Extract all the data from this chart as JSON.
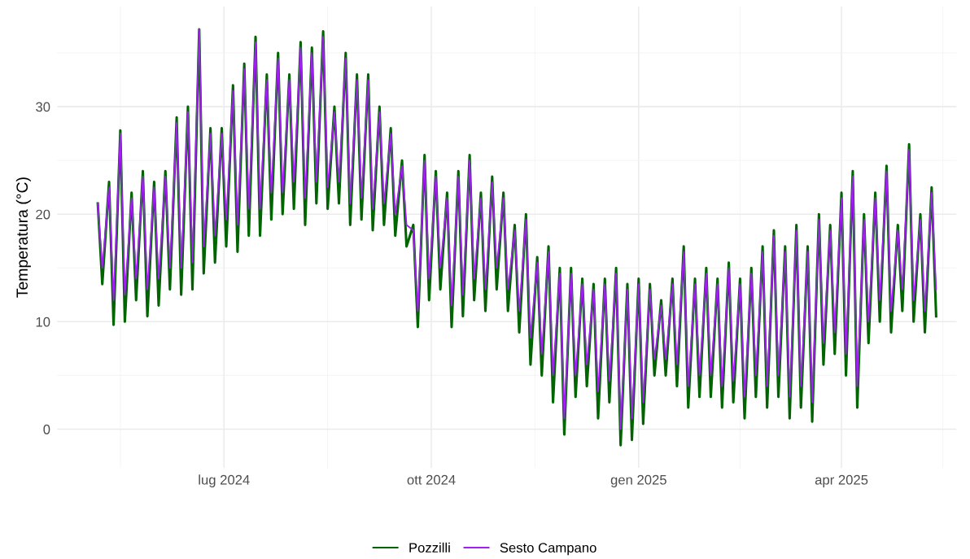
{
  "chart_data": {
    "type": "line",
    "ylabel": "Temperatura (°C)",
    "x": [
      "2024-05-06",
      "2024-05-08",
      "2024-05-11",
      "2024-05-13",
      "2024-05-16",
      "2024-05-18",
      "2024-05-21",
      "2024-05-23",
      "2024-05-26",
      "2024-05-28",
      "2024-05-31",
      "2024-06-02",
      "2024-06-05",
      "2024-06-07",
      "2024-06-10",
      "2024-06-12",
      "2024-06-15",
      "2024-06-17",
      "2024-06-20",
      "2024-06-22",
      "2024-06-25",
      "2024-06-27",
      "2024-06-30",
      "2024-07-02",
      "2024-07-05",
      "2024-07-07",
      "2024-07-10",
      "2024-07-12",
      "2024-07-15",
      "2024-07-17",
      "2024-07-20",
      "2024-07-22",
      "2024-07-25",
      "2024-07-27",
      "2024-07-30",
      "2024-08-01",
      "2024-08-04",
      "2024-08-06",
      "2024-08-09",
      "2024-08-11",
      "2024-08-14",
      "2024-08-16",
      "2024-08-19",
      "2024-08-21",
      "2024-08-24",
      "2024-08-26",
      "2024-08-29",
      "2024-08-31",
      "2024-09-03",
      "2024-09-05",
      "2024-09-08",
      "2024-09-10",
      "2024-09-13",
      "2024-09-15",
      "2024-09-18",
      "2024-09-20",
      "2024-09-23",
      "2024-09-25",
      "2024-09-28",
      "2024-09-30",
      "2024-10-03",
      "2024-10-05",
      "2024-10-08",
      "2024-10-10",
      "2024-10-13",
      "2024-10-15",
      "2024-10-18",
      "2024-10-20",
      "2024-10-23",
      "2024-10-25",
      "2024-10-28",
      "2024-10-30",
      "2024-11-02",
      "2024-11-04",
      "2024-11-07",
      "2024-11-09",
      "2024-11-12",
      "2024-11-14",
      "2024-11-17",
      "2024-11-19",
      "2024-11-22",
      "2024-11-24",
      "2024-11-27",
      "2024-11-29",
      "2024-12-02",
      "2024-12-04",
      "2024-12-07",
      "2024-12-09",
      "2024-12-12",
      "2024-12-14",
      "2024-12-17",
      "2024-12-19",
      "2024-12-22",
      "2024-12-24",
      "2024-12-27",
      "2024-12-29",
      "2025-01-01",
      "2025-01-03",
      "2025-01-06",
      "2025-01-08",
      "2025-01-11",
      "2025-01-13",
      "2025-01-16",
      "2025-01-18",
      "2025-01-21",
      "2025-01-23",
      "2025-01-26",
      "2025-01-28",
      "2025-01-31",
      "2025-02-02",
      "2025-02-05",
      "2025-02-07",
      "2025-02-10",
      "2025-02-12",
      "2025-02-15",
      "2025-02-17",
      "2025-02-20",
      "2025-02-22",
      "2025-02-25",
      "2025-02-27",
      "2025-03-02",
      "2025-03-04",
      "2025-03-07",
      "2025-03-09",
      "2025-03-12",
      "2025-03-14",
      "2025-03-17",
      "2025-03-19",
      "2025-03-22",
      "2025-03-24",
      "2025-03-27",
      "2025-03-29",
      "2025-04-01",
      "2025-04-03",
      "2025-04-06",
      "2025-04-08",
      "2025-04-11",
      "2025-04-13",
      "2025-04-16",
      "2025-04-18",
      "2025-04-21",
      "2025-04-23",
      "2025-04-26",
      "2025-04-28",
      "2025-05-01",
      "2025-05-03",
      "2025-05-06",
      "2025-05-08",
      "2025-05-11",
      "2025-05-13"
    ],
    "series": [
      {
        "name": "Pozzilli",
        "color": "#006400",
        "values": [
          21,
          13.5,
          23,
          9.7,
          27.8,
          10,
          22,
          12,
          24,
          10.5,
          23,
          11.5,
          24,
          13,
          29,
          12.5,
          30,
          13,
          37.2,
          14.5,
          28,
          15.5,
          28,
          17,
          32,
          16.5,
          34,
          18,
          36.5,
          18,
          33,
          19.5,
          35,
          20,
          33,
          20.5,
          36,
          19,
          35.5,
          21,
          37,
          20.5,
          30,
          21,
          35,
          19,
          33,
          19.5,
          33,
          18.5,
          30,
          19,
          28,
          18,
          25,
          17,
          19,
          9.5,
          25.5,
          12,
          24,
          13,
          22,
          9.5,
          24,
          10.5,
          25.5,
          12,
          22,
          11,
          23.5,
          13,
          22,
          11,
          19,
          9,
          20,
          6,
          16,
          5,
          17,
          2.5,
          15,
          -0.5,
          15,
          3,
          14,
          4,
          13.5,
          1,
          14,
          2.5,
          15,
          -1.5,
          13.5,
          -1,
          14,
          0.5,
          13.5,
          5,
          12,
          5,
          14,
          4,
          17,
          2,
          14,
          3,
          15,
          3,
          14,
          2,
          15.5,
          2.5,
          14,
          1,
          15,
          3,
          17,
          2,
          18.5,
          3,
          17,
          1,
          19,
          2,
          17,
          0.7,
          20,
          6,
          19,
          7,
          22,
          5,
          24,
          2,
          20,
          8,
          22,
          10,
          24.5,
          9,
          19,
          11,
          26.5,
          10,
          20,
          9,
          22.5,
          10.5
        ]
      },
      {
        "name": "Sesto Campano",
        "color": "#a020f0",
        "values": [
          21,
          15,
          22.5,
          12,
          27.5,
          12.5,
          21.5,
          14,
          23.5,
          13,
          22.5,
          14,
          23.5,
          15,
          28.5,
          15,
          29.5,
          15.5,
          37.2,
          17,
          27.5,
          18,
          27.5,
          19.5,
          31.5,
          19,
          33.5,
          20.5,
          36,
          20.5,
          32.5,
          22,
          34.5,
          22,
          32.5,
          23,
          35.5,
          21.5,
          35,
          23,
          36.5,
          22.5,
          29.5,
          23,
          34.5,
          21,
          32.5,
          21.5,
          32.5,
          20.5,
          29.5,
          21,
          27.5,
          20,
          24.5,
          19,
          18.5,
          11,
          25,
          14,
          23.5,
          15,
          21.5,
          11.5,
          23.5,
          12.5,
          25,
          14,
          21.5,
          13,
          23,
          15,
          21.5,
          13,
          18.5,
          11,
          19.5,
          8.5,
          15.5,
          7,
          16.5,
          5,
          14.5,
          1,
          14.5,
          5,
          13.5,
          6,
          13,
          3.5,
          13.5,
          4.5,
          14.5,
          0,
          13,
          1,
          13.5,
          2.5,
          13,
          6.5,
          11.5,
          6.5,
          13.5,
          6,
          16.5,
          4,
          13.5,
          5,
          14.5,
          5,
          13.5,
          4,
          15,
          4.5,
          13.5,
          3,
          14.5,
          5,
          16.5,
          4,
          18,
          5,
          16.5,
          3,
          18.5,
          4,
          16.5,
          2.5,
          19.5,
          8,
          18.5,
          9,
          21.5,
          7,
          23.5,
          4,
          19.5,
          10,
          21.5,
          12,
          24,
          11,
          18.5,
          13,
          26,
          12,
          19.5,
          11,
          22,
          13
        ]
      }
    ],
    "xlim": [
      "2024-04-18",
      "2025-05-22"
    ],
    "xticks": [
      {
        "value": "2024-07-01",
        "label": "lug 2024"
      },
      {
        "value": "2024-10-01",
        "label": "ott 2024"
      },
      {
        "value": "2025-01-01",
        "label": "gen 2025"
      },
      {
        "value": "2025-04-01",
        "label": "apr 2025"
      }
    ],
    "ylim": [
      -3.6,
      39.3
    ],
    "yticks": [
      0,
      10,
      20,
      30
    ],
    "grid": true,
    "legend": "bottom",
    "line_style": "solid",
    "marker": "none"
  }
}
